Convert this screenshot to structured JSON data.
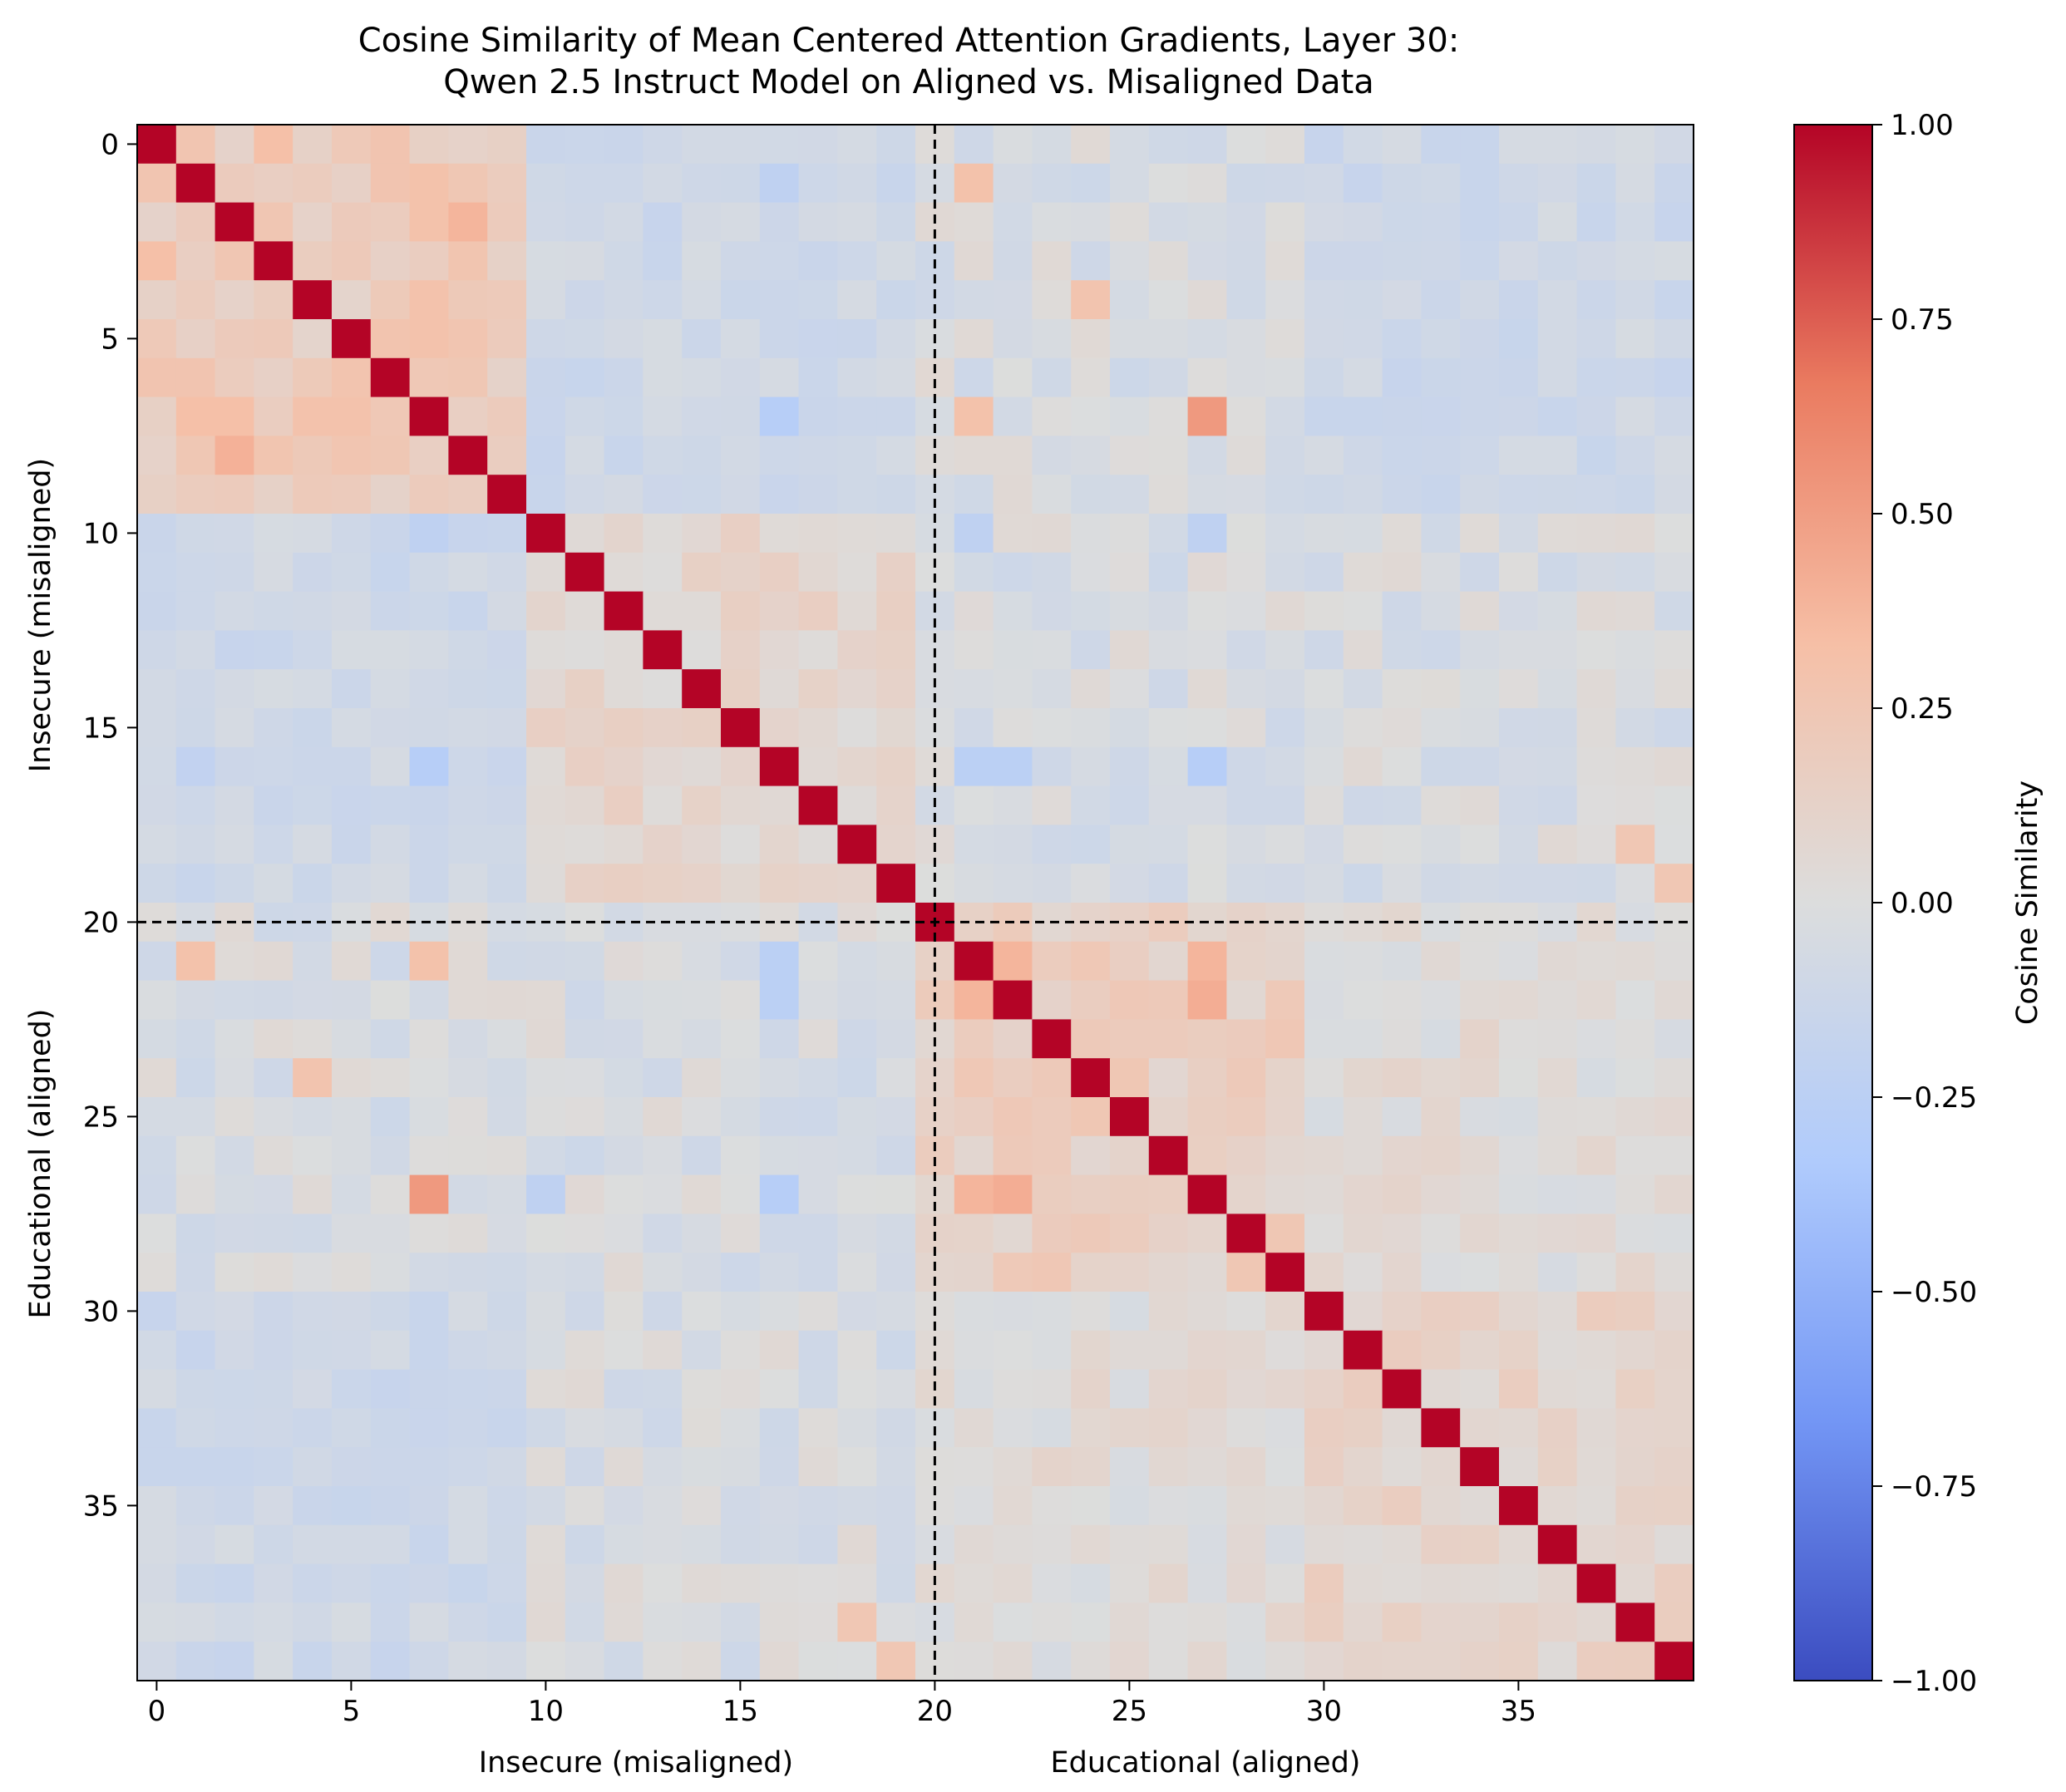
{
  "chart_data": {
    "type": "heatmap",
    "title": [
      "Cosine Similarity of Mean Centered Attention Gradients, Layer 30:",
      "Qwen 2.5 Instruct Model on Aligned vs. Misaligned Data"
    ],
    "size": 40,
    "groups": [
      {
        "name": "Insecure (misaligned)",
        "start": 0,
        "end": 19
      },
      {
        "name": "Educational (aligned)",
        "start": 20,
        "end": 39
      }
    ],
    "divider_at": 20,
    "x_ticks": [
      0,
      5,
      10,
      15,
      20,
      25,
      30,
      35
    ],
    "y_ticks": [
      0,
      5,
      10,
      15,
      20,
      25,
      30,
      35
    ],
    "xlabel_left": "Insecure (misaligned)",
    "xlabel_right": "Educational (aligned)",
    "ylabel_top": "Insecure (misaligned)",
    "ylabel_bottom": "Educational (aligned)",
    "colormap": "coolwarm",
    "colormap_stops": [
      "#3b4cc0",
      "#7396f5",
      "#b0cbfc",
      "#dcdddd",
      "#f6bfa6",
      "#ea7b60",
      "#b40426"
    ],
    "vmin": -1.0,
    "vmax": 1.0,
    "colorbar_label": "Cosine Similarity",
    "colorbar_ticks": [
      "1.00",
      "0.75",
      "0.50",
      "0.25",
      "0.00",
      "−0.25",
      "−0.50",
      "−0.75",
      "−1.00"
    ],
    "colorbar_tick_values": [
      1.0,
      0.75,
      0.5,
      0.25,
      0.0,
      -0.25,
      -0.5,
      -0.75,
      -1.0
    ],
    "highlights": [
      {
        "row": 1,
        "col": 7,
        "value": 0.3
      },
      {
        "row": 2,
        "col": 7,
        "value": 0.3
      },
      {
        "row": 2,
        "col": 8,
        "value": 0.38
      },
      {
        "row": 7,
        "col": 1,
        "value": 0.32
      },
      {
        "row": 7,
        "col": 2,
        "value": 0.32
      },
      {
        "row": 8,
        "col": 2,
        "value": 0.4
      },
      {
        "row": 0,
        "col": 3,
        "value": 0.32
      },
      {
        "row": 3,
        "col": 0,
        "value": 0.32
      },
      {
        "row": 7,
        "col": 27,
        "value": 0.52
      },
      {
        "row": 27,
        "col": 7,
        "value": 0.52
      },
      {
        "row": 21,
        "col": 27,
        "value": 0.38
      },
      {
        "row": 22,
        "col": 27,
        "value": 0.42
      },
      {
        "row": 27,
        "col": 21,
        "value": 0.38
      },
      {
        "row": 27,
        "col": 22,
        "value": 0.42
      },
      {
        "row": 21,
        "col": 22,
        "value": 0.38
      },
      {
        "row": 22,
        "col": 21,
        "value": 0.38
      },
      {
        "row": 7,
        "col": 21,
        "value": 0.3
      },
      {
        "row": 21,
        "col": 7,
        "value": 0.3
      },
      {
        "row": 21,
        "col": 1,
        "value": 0.3
      },
      {
        "row": 1,
        "col": 21,
        "value": 0.3
      },
      {
        "row": 16,
        "col": 7,
        "value": -0.28
      },
      {
        "row": 7,
        "col": 16,
        "value": -0.28
      },
      {
        "row": 16,
        "col": 27,
        "value": -0.28
      },
      {
        "row": 27,
        "col": 16,
        "value": -0.28
      },
      {
        "row": 16,
        "col": 21,
        "value": -0.25
      },
      {
        "row": 16,
        "col": 22,
        "value": -0.25
      },
      {
        "row": 21,
        "col": 16,
        "value": -0.25
      },
      {
        "row": 22,
        "col": 16,
        "value": -0.25
      },
      {
        "row": 10,
        "col": 21,
        "value": -0.22
      },
      {
        "row": 10,
        "col": 7,
        "value": -0.22
      },
      {
        "row": 10,
        "col": 27,
        "value": -0.22
      },
      {
        "row": 27,
        "col": 10,
        "value": -0.22
      },
      {
        "row": 1,
        "col": 16,
        "value": -0.22
      },
      {
        "row": 16,
        "col": 1,
        "value": -0.2
      },
      {
        "row": 4,
        "col": 24,
        "value": 0.28
      },
      {
        "row": 24,
        "col": 4,
        "value": 0.28
      },
      {
        "row": 19,
        "col": 39,
        "value": 0.25
      },
      {
        "row": 39,
        "col": 19,
        "value": 0.25
      },
      {
        "row": 18,
        "col": 38,
        "value": 0.25
      },
      {
        "row": 38,
        "col": 18,
        "value": 0.25
      }
    ]
  }
}
